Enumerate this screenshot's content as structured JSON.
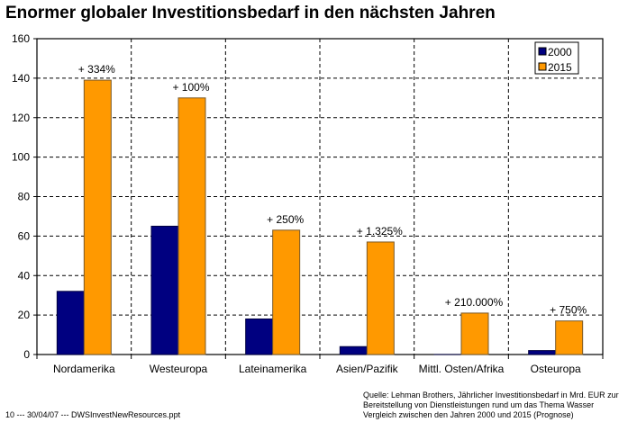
{
  "chart_data": {
    "type": "bar",
    "title": "Enormer globaler Investitionsbedarf in den nächsten Jahren",
    "categories": [
      "Nordamerika",
      "Westeuropa",
      "Lateinamerika",
      "Asien/Pazifik",
      "Mittl. Osten/Afrika",
      "Osteuropa"
    ],
    "series": [
      {
        "name": "2000",
        "color": "#000080",
        "values": [
          32,
          65,
          18,
          4,
          0.01,
          2
        ]
      },
      {
        "name": "2015",
        "color": "#FF9900",
        "values": [
          139,
          130,
          63,
          57,
          21,
          17
        ]
      }
    ],
    "annotations": [
      "+ 334%",
      "+ 100%",
      "+ 250%",
      "+ 1.325%",
      "+ 210.000%",
      "+ 750%"
    ],
    "yticks": [
      0,
      20,
      40,
      60,
      80,
      100,
      120,
      140,
      160
    ],
    "ylim": [
      0,
      160
    ],
    "xlabel": "",
    "ylabel": "",
    "grid": true,
    "legend": "top-right"
  },
  "source": [
    "Quelle: Lehman Brothers, Jährlicher Investitionsbedarf in Mrd. EUR zur",
    "Bereitstellung von Dienstleistungen rund um das Thema Wasser",
    "Vergleich zwischen den Jahren 2000 und 2015 (Prognose)"
  ],
  "footer": "10 --- 30/04/07 --- DWSInvestNewResources.ppt"
}
